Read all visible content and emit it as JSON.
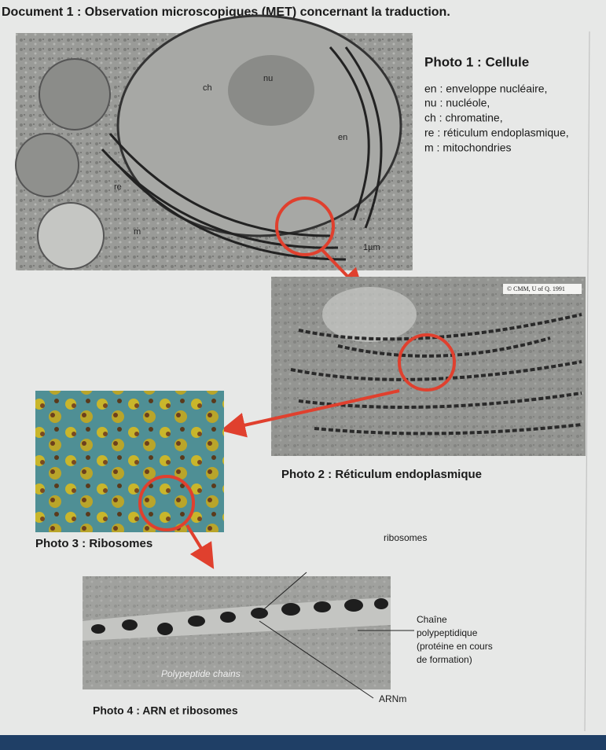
{
  "title": "Document 1 : Observation microscopiques (MET) concernant la traduction.",
  "photo1": {
    "caption": "Photo 1 : Cellule",
    "legend": [
      "en : enveloppe nucléaire,",
      "nu : nucléole,",
      "ch : chromatine,",
      "re : réticulum endoplasmique,",
      "m : mitochondries"
    ],
    "labels": {
      "nu": "nu",
      "ch": "ch",
      "en": "en",
      "re": "re",
      "m": "m",
      "scale": "1µm"
    }
  },
  "photo2": {
    "caption": "Photo 2 : Réticulum endoplasmique",
    "credit": "© CMM, U of Q. 1991"
  },
  "photo3": {
    "caption": "Photo 3 : Ribosomes"
  },
  "photo4": {
    "caption": "Photo 4 : ARN et ribosomes",
    "inner_label": "Polypeptide chains",
    "ribosomes": "ribosomes",
    "chain": [
      "Chaîne",
      "polypeptidique",
      "(protéine en cours",
      "de formation)"
    ],
    "mrna": "ARNm"
  }
}
